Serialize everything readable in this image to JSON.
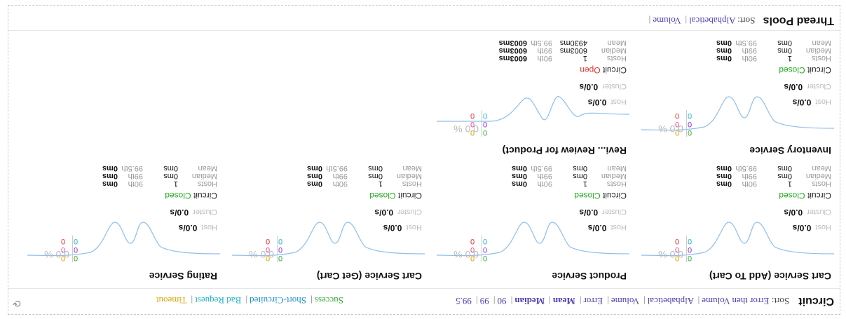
{
  "circuit": {
    "title": "Circuit",
    "sort_label": "Sort:",
    "sort_links": [
      "Error then Volume",
      "Alphabetical",
      "Volume",
      "Error",
      "Mean",
      "Median",
      "90",
      "99",
      "99.5"
    ],
    "legend": [
      "Success",
      "Short-Circuited",
      "Bad Request",
      "Timeout"
    ]
  },
  "cards": [
    {
      "name": "Cart Service (Add To Cart)",
      "counts": {
        "green": "0",
        "blue": "0",
        "teal": "0",
        "yellow": "0",
        "purple": "0",
        "red": "0"
      },
      "rate": "0.0 %",
      "host_label": "Host",
      "host_value": "0.0/s",
      "cluster_label": "Cluster",
      "cluster_value": "0.0/s",
      "circuit_label": "Circuit",
      "circuit_state": "Closed",
      "hosts_label": "Hosts",
      "hosts_value": "1",
      "median_label": "Median",
      "median_value": "0ms",
      "mean_label": "Mean",
      "mean_value": "0ms",
      "p90_label": "90th",
      "p90_value": "0ms",
      "p99_label": "99th",
      "p99_value": "0ms",
      "p995_label": "99.5th",
      "p995_value": "0ms"
    },
    {
      "name": "Product Service",
      "counts": {
        "green": "0",
        "blue": "0",
        "teal": "0",
        "yellow": "0",
        "purple": "0",
        "red": "0"
      },
      "rate": "0.0 %",
      "host_label": "Host",
      "host_value": "0.0/s",
      "cluster_label": "Cluster",
      "cluster_value": "0.0/s",
      "circuit_label": "Circuit",
      "circuit_state": "Closed",
      "hosts_label": "Hosts",
      "hosts_value": "1",
      "median_label": "Median",
      "median_value": "0ms",
      "mean_label": "Mean",
      "mean_value": "0ms",
      "p90_label": "90th",
      "p90_value": "0ms",
      "p99_label": "99th",
      "p99_value": "0ms",
      "p995_label": "99.5th",
      "p995_value": "0ms"
    },
    {
      "name": "Cart Service (Get Cart)",
      "counts": {
        "green": "0",
        "blue": "0",
        "teal": "0",
        "yellow": "0",
        "purple": "0",
        "red": "0"
      },
      "rate": "0.0 %",
      "host_label": "Host",
      "host_value": "0.0/s",
      "cluster_label": "Cluster",
      "cluster_value": "0.0/s",
      "circuit_label": "Circuit",
      "circuit_state": "Closed",
      "hosts_label": "Hosts",
      "hosts_value": "1",
      "median_label": "Median",
      "median_value": "0ms",
      "mean_label": "Mean",
      "mean_value": "0ms",
      "p90_label": "90th",
      "p90_value": "0ms",
      "p99_label": "99th",
      "p99_value": "0ms",
      "p995_label": "99.5th",
      "p995_value": "0ms"
    },
    {
      "name": "Rating Service",
      "counts": {
        "green": "0",
        "blue": "0",
        "teal": "0",
        "yellow": "0",
        "purple": "0",
        "red": "0"
      },
      "rate": "0.0 %",
      "host_label": "Host",
      "host_value": "0.0/s",
      "cluster_label": "Cluster",
      "cluster_value": "0.0/s",
      "circuit_label": "Circuit",
      "circuit_state": "Closed",
      "hosts_label": "Hosts",
      "hosts_value": "1",
      "median_label": "Median",
      "median_value": "0ms",
      "mean_label": "Mean",
      "mean_value": "0ms",
      "p90_label": "90th",
      "p90_value": "0ms",
      "p99_label": "99th",
      "p99_value": "0ms",
      "p995_label": "99.5th",
      "p995_value": "0ms"
    },
    {
      "name": "Inventory Service",
      "counts": {
        "green": "0",
        "blue": "0",
        "teal": "0",
        "yellow": "0",
        "purple": "0",
        "red": "0"
      },
      "rate": "0.0 %",
      "host_label": "Host",
      "host_value": "0.0/s",
      "cluster_label": "Cluster",
      "cluster_value": "0.0/s",
      "circuit_label": "Circuit",
      "circuit_state": "Closed",
      "hosts_label": "Hosts",
      "hosts_value": "1",
      "median_label": "Median",
      "median_value": "0ms",
      "mean_label": "Mean",
      "mean_value": "0ms",
      "p90_label": "90th",
      "p90_value": "0ms",
      "p99_label": "99th",
      "p99_value": "0ms",
      "p995_label": "99.5th",
      "p995_value": "0ms"
    },
    {
      "name": "Revi... Review for Product)",
      "counts": {
        "green": "0",
        "blue": "0",
        "teal": "0",
        "yellow": "0",
        "purple": "0",
        "red": "0"
      },
      "rate": "0.0 %",
      "host_label": "Host",
      "host_value": "0.0/s",
      "cluster_label": "Cluster",
      "cluster_value": "0.0/s",
      "circuit_label": "Circuit",
      "circuit_state": "Open",
      "hosts_label": "Hosts",
      "hosts_value": "1",
      "median_label": "Median",
      "median_value": "6003ms",
      "mean_label": "Mean",
      "mean_value": "4930ms",
      "p90_label": "90th",
      "p90_value": "6003ms",
      "p99_label": "99th",
      "p99_value": "6003ms",
      "p995_label": "99.5th",
      "p995_value": "6003ms"
    }
  ],
  "thread_pools": {
    "title": "Thread Pools",
    "sort_label": "Sort:",
    "sort_links": [
      "Alphabetical",
      "Volume"
    ]
  }
}
